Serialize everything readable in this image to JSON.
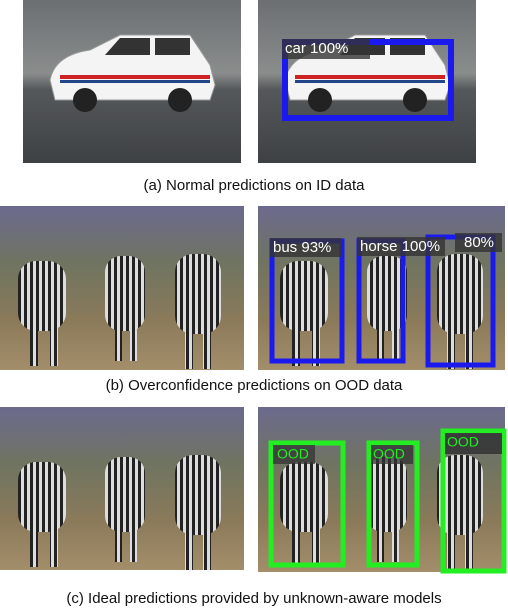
{
  "panels": [
    {
      "caption": "(a) Normal predictions on ID data",
      "labels": [
        "car 100%"
      ]
    },
    {
      "caption": "(b) Overconfidence predictions on OOD data",
      "labels": [
        "bus 93%",
        "horse 100%",
        "80%"
      ]
    },
    {
      "caption": "(c) Ideal predictions provided by unknown-aware models",
      "labels": [
        "OOD",
        "OOD",
        "OOD"
      ]
    }
  ]
}
